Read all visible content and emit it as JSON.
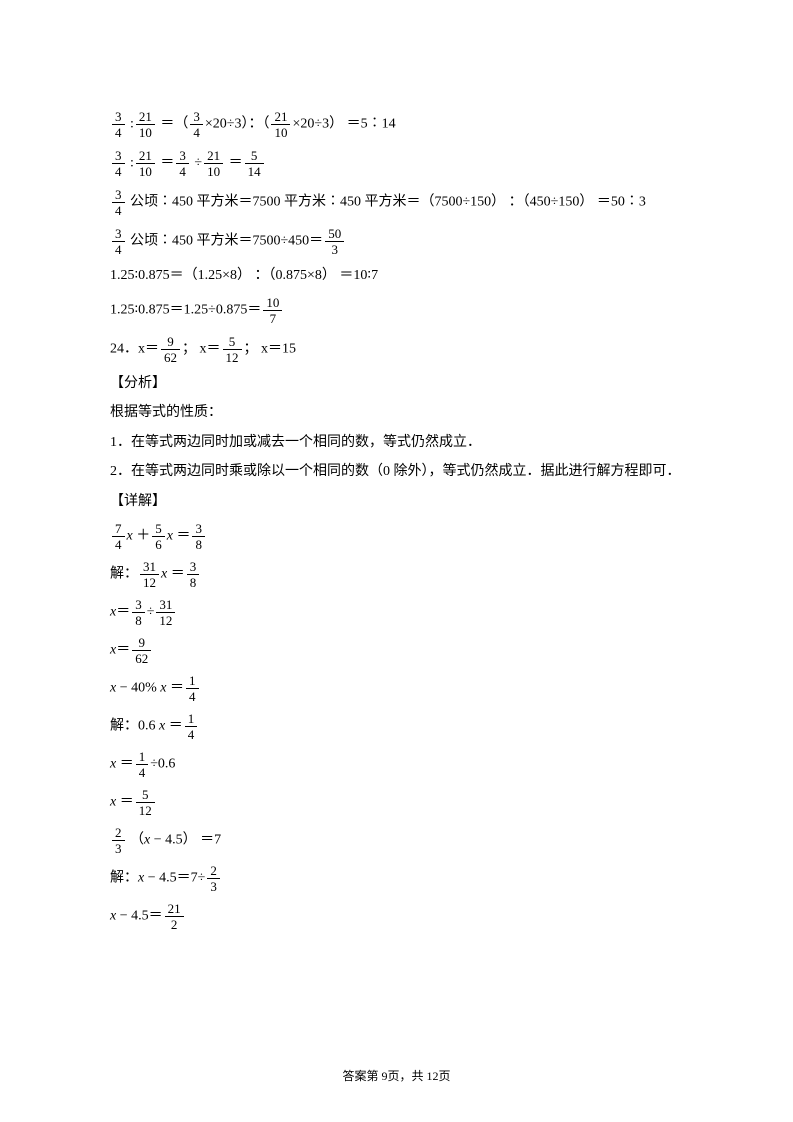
{
  "l1_a": "×20÷3）",
  "l1_b": "：（",
  "l1_c": "×20÷3） ＝5∶14",
  "l3_a": "公顷∶450 平方米＝7500 平方米∶450 平方米＝（7500÷150） ：（450÷150） ＝50∶3",
  "l4_a": "公顷∶450 平方米＝7500÷450＝",
  "l5": "1.25∶0.875＝（1.25×8） ：（0.875×8） ＝10∶7",
  "l6_a": "1.25∶0.875＝1.25÷0.875＝",
  "l7_a": "24．x＝",
  "l7_b": "；  x＝",
  "l7_c": "；  x＝15",
  "analysis_label": "【分析】",
  "a1": "根据等式的性质：",
  "a2": "1．在等式两边同时加或减去一个相同的数，等式仍然成立．",
  "a3": "2．在等式两边同时乘或除以一个相同的数（0 除外），等式仍然成立．据此进行解方程即可．",
  "detail_label": "【详解】",
  "s1_a": "解：",
  "s2_a": "÷",
  "eq2_a": "− 40%",
  "s3_a": "解：0.6",
  "s3_b": "÷0.6",
  "eq3_a": "（",
  "eq3_b": "− 4.5） ＝7",
  "s4_a": "解：",
  "s4_b": "− 4.5＝7÷",
  "s4_c": "− 4.5＝",
  "footer": "答案第 9页，共 12页",
  "f": {
    "f34": {
      "n": "3",
      "d": "4"
    },
    "f2110": {
      "n": "21",
      "d": "10"
    },
    "f514": {
      "n": "5",
      "d": "14"
    },
    "f503": {
      "n": "50",
      "d": "3"
    },
    "f107": {
      "n": "10",
      "d": "7"
    },
    "f962": {
      "n": "9",
      "d": "62"
    },
    "f512": {
      "n": "5",
      "d": "12"
    },
    "f74": {
      "n": "7",
      "d": "4"
    },
    "f56": {
      "n": "5",
      "d": "6"
    },
    "f38": {
      "n": "3",
      "d": "8"
    },
    "f3112": {
      "n": "31",
      "d": "12"
    },
    "f14": {
      "n": "1",
      "d": "4"
    },
    "f23": {
      "n": "2",
      "d": "3"
    },
    "f212": {
      "n": "21",
      "d": "2"
    }
  }
}
